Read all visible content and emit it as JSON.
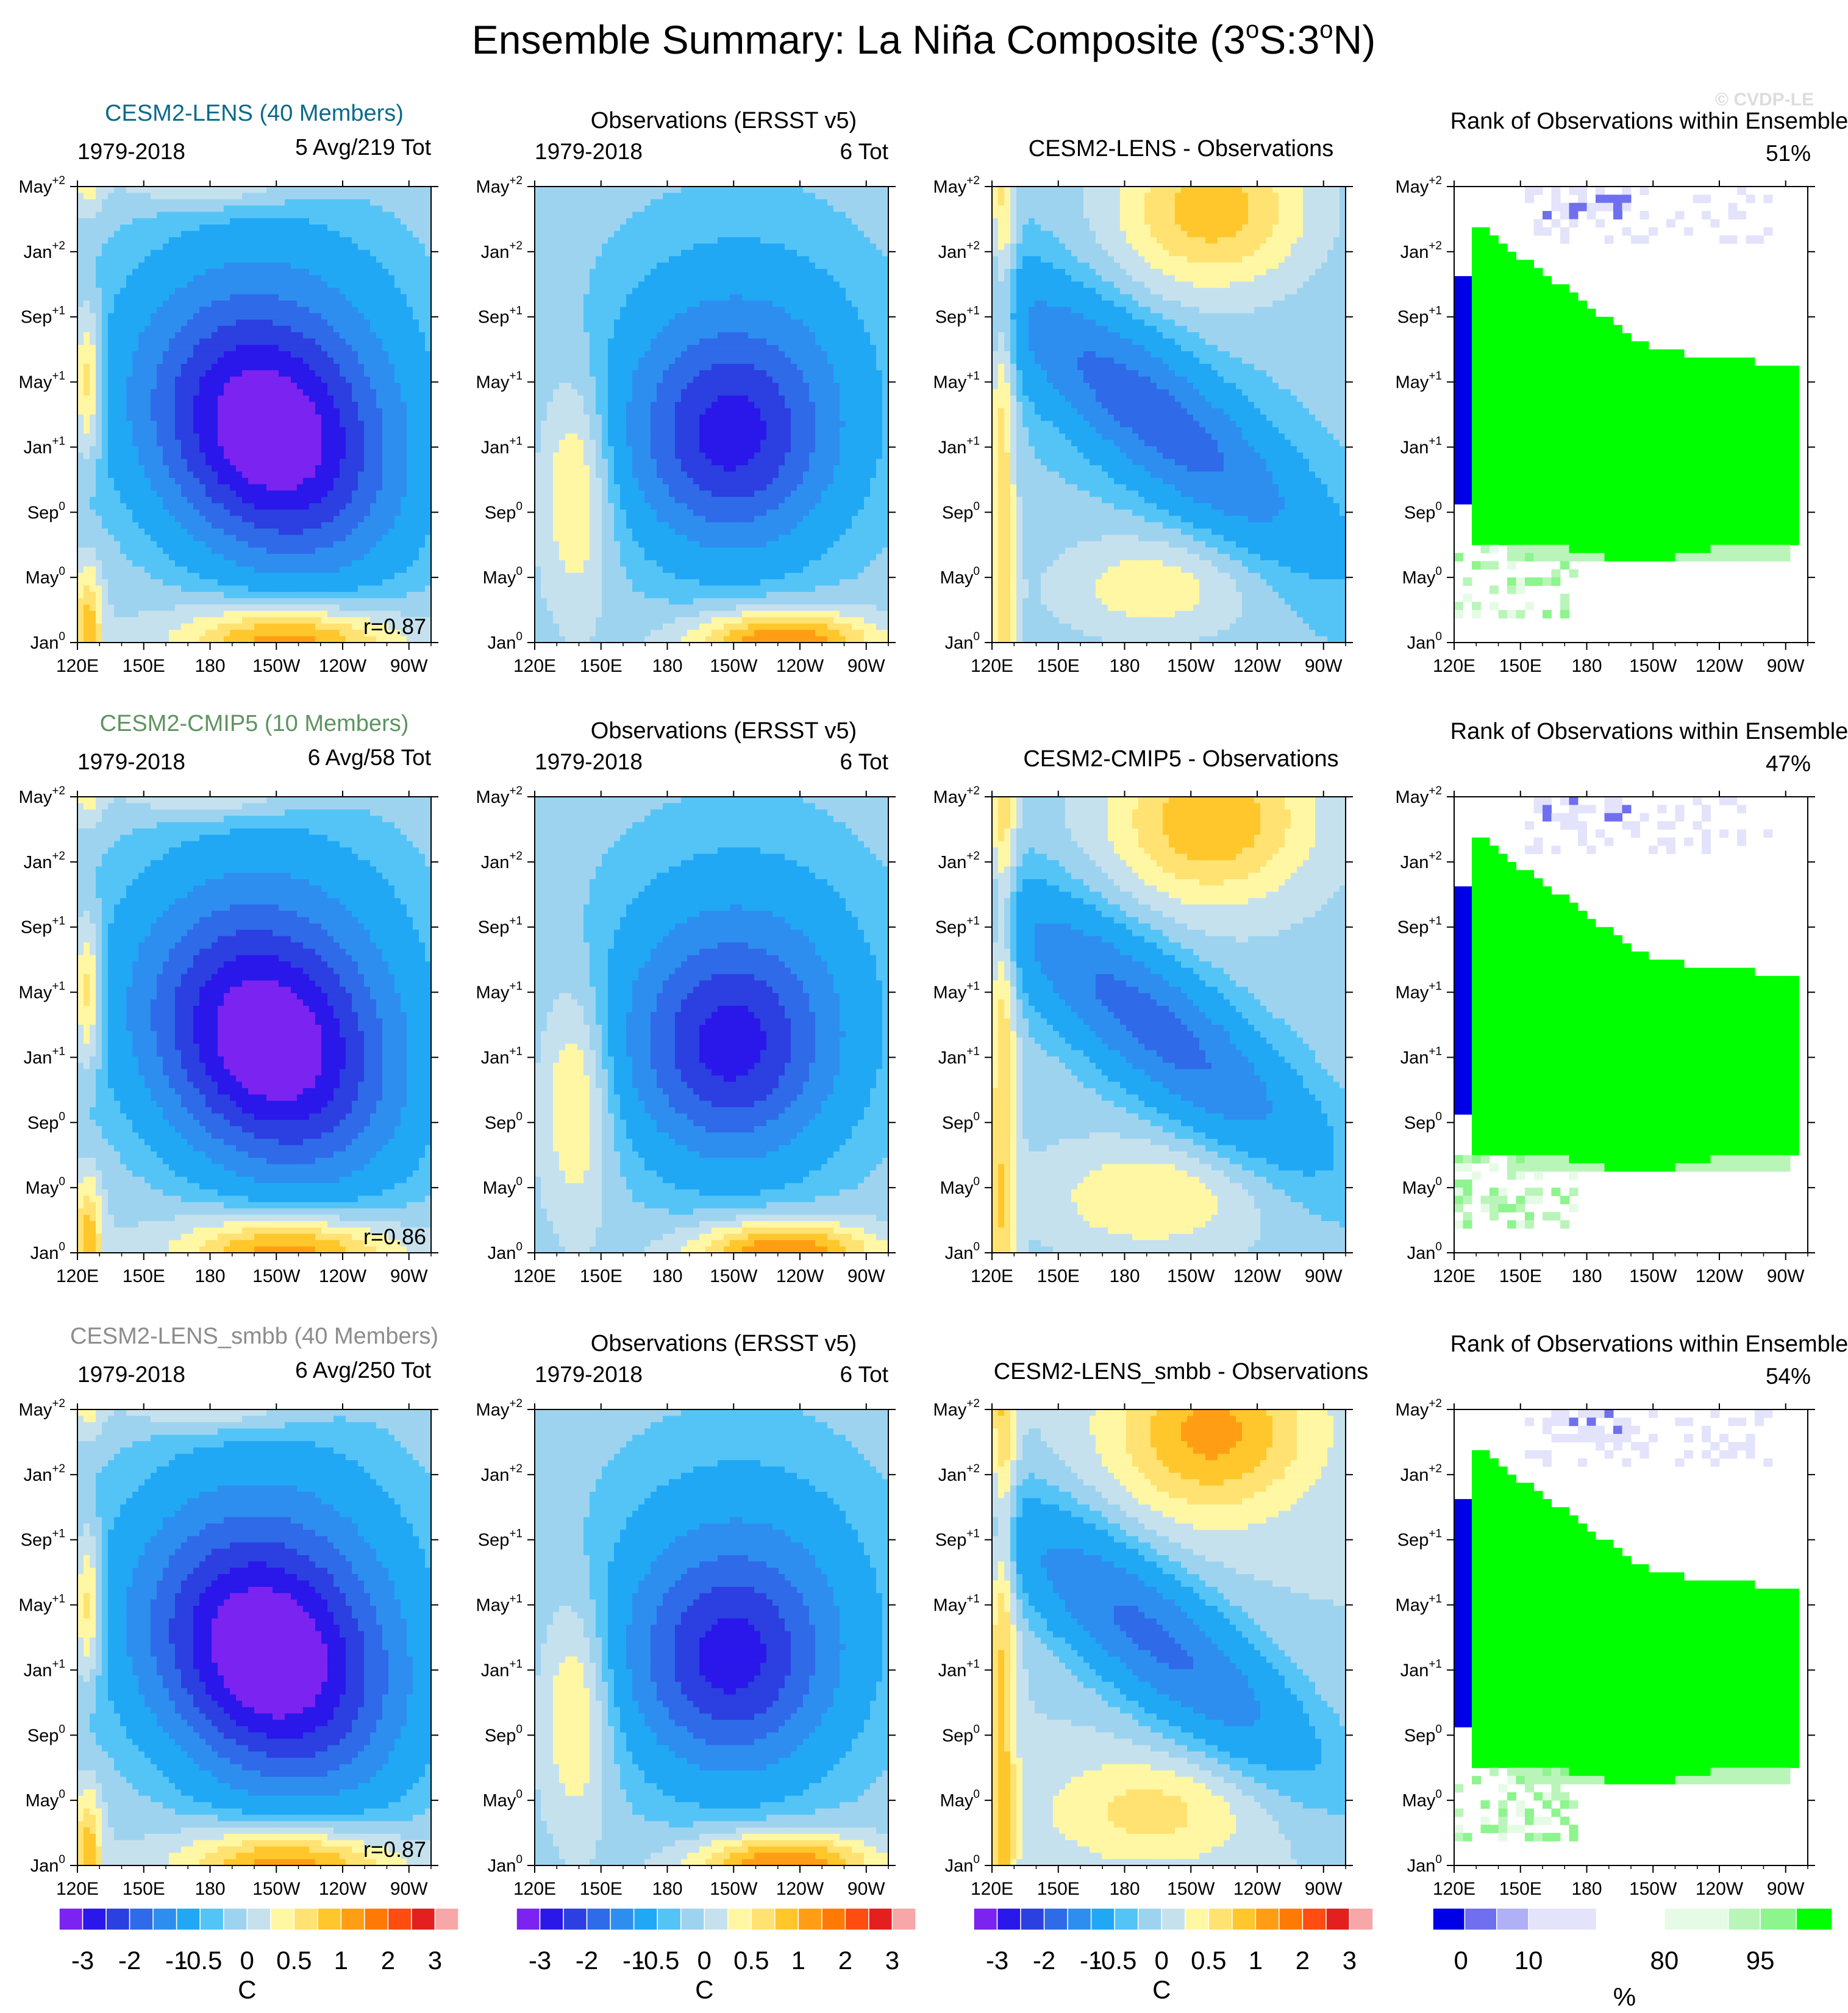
{
  "figure": {
    "title": "Ensemble Summary: La Niña Composite (3°S:3°N)",
    "title_main": "Ensemble Summary: La Niña Composite (3",
    "title_o1": "o",
    "title_mid": "S:3",
    "title_o2": "o",
    "title_end": "N)",
    "watermark": "© CVDP-LE"
  },
  "colors": {
    "lens": "#0a6a8a",
    "cmip5": "#5e9460",
    "smbb": "#8c8c8c",
    "fill_positive": "#ffd84f",
    "fill_negative": "#1d8ef5",
    "rank_green": "#00ff00",
    "rank_blue": "#0000e6"
  },
  "chart_data": {
    "type": "heatmap",
    "description": "Hovmöller composites: longitude (x) vs time lag (y), SST anomaly in C",
    "x_ticks": [
      "120E",
      "150E",
      "180",
      "150W",
      "120W",
      "90W"
    ],
    "x_tick_lon": [
      120,
      150,
      180,
      210,
      240,
      270
    ],
    "xlim": [
      120,
      280
    ],
    "y_ticks": [
      {
        "base": "Jan",
        "sup": "0"
      },
      {
        "base": "May",
        "sup": "0"
      },
      {
        "base": "Sep",
        "sup": "0"
      },
      {
        "base": "Jan",
        "sup": "+1"
      },
      {
        "base": "May",
        "sup": "+1"
      },
      {
        "base": "Sep",
        "sup": "+1"
      },
      {
        "base": "Jan",
        "sup": "+2"
      },
      {
        "base": "May",
        "sup": "+2"
      }
    ],
    "y_tick_months": [
      0,
      4,
      8,
      12,
      16,
      20,
      24,
      28
    ],
    "ylim": [
      0,
      28
    ],
    "rows": [
      {
        "ensemble": {
          "title": "CESM2-LENS (40 Members)",
          "period": "1979-2018",
          "count": "5 Avg/219 Tot",
          "correlation": "r=0.87",
          "peak": -3.1,
          "color_key": "lens"
        },
        "observations": {
          "title": "Observations (ERSST v5)",
          "period": "1979-2018",
          "count": "6 Tot",
          "peak": -2.2
        },
        "difference": {
          "title": "CESM2-LENS - Observations"
        },
        "rank": {
          "title": "Rank of Observations within Ensemble",
          "percent": "51%"
        }
      },
      {
        "ensemble": {
          "title": "CESM2-CMIP5 (10 Members)",
          "period": "1979-2018",
          "count": "6 Avg/58 Tot",
          "correlation": "r=0.86",
          "peak": -3.1,
          "color_key": "cmip5"
        },
        "observations": {
          "title": "Observations (ERSST v5)",
          "period": "1979-2018",
          "count": "6 Tot",
          "peak": -2.2
        },
        "difference": {
          "title": "CESM2-CMIP5 - Observations"
        },
        "rank": {
          "title": "Rank of Observations within Ensemble",
          "percent": "47%"
        }
      },
      {
        "ensemble": {
          "title": "CESM2-LENS_smbb (40 Members)",
          "period": "1979-2018",
          "count": "6 Avg/250 Tot",
          "correlation": "r=0.87",
          "peak": -3.2,
          "color_key": "smbb"
        },
        "observations": {
          "title": "Observations (ERSST v5)",
          "period": "1979-2018",
          "count": "6 Tot",
          "peak": -2.2
        },
        "difference": {
          "title": "CESM2-LENS_smbb - Observations"
        },
        "rank": {
          "title": "Rank of Observations within Ensemble",
          "percent": "54%"
        }
      }
    ],
    "sst_colorbar": {
      "labels": [
        "-3",
        "-2",
        "-1",
        "-0.5",
        "0",
        "0.5",
        "1",
        "2",
        "3"
      ],
      "levels": [
        -3,
        -2.5,
        -2,
        -1.5,
        -1,
        -0.5,
        -0.25,
        0,
        0.25,
        0.5,
        0.75,
        1,
        1.5,
        2,
        2.5,
        3
      ],
      "colors": [
        "#7b23f0",
        "#2a17ea",
        "#2c3fe0",
        "#2f6ae8",
        "#2e8ef0",
        "#20a8f5",
        "#54c4f7",
        "#9ed3ef",
        "#c6e1ee",
        "#fff7a4",
        "#ffe271",
        "#ffc72b",
        "#ff9e15",
        "#ff7a05",
        "#ff4c10",
        "#e31f1f",
        "#f7a7a8"
      ],
      "unit": "C"
    },
    "rank_colorbar": {
      "labels": [
        "0",
        "10",
        "80",
        "95"
      ],
      "levels": [
        0,
        5,
        10,
        20,
        80,
        90,
        95,
        98
      ],
      "colors": [
        "#0000e6",
        "#6f6ff0",
        "#b0b0f6",
        "#e3e3fb",
        "#ffffff",
        "#e6fbe6",
        "#b9f5b9",
        "#8ef48e",
        "#00ff00"
      ],
      "unit": "%"
    }
  }
}
